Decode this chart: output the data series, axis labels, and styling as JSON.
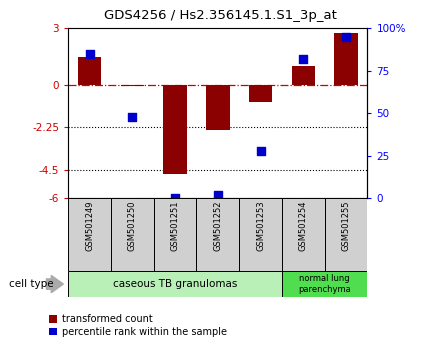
{
  "title": "GDS4256 / Hs2.356145.1.S1_3p_at",
  "samples": [
    "GSM501249",
    "GSM501250",
    "GSM501251",
    "GSM501252",
    "GSM501253",
    "GSM501254",
    "GSM501255"
  ],
  "red_values": [
    1.5,
    -0.05,
    -4.72,
    -2.4,
    -0.9,
    1.0,
    2.75
  ],
  "blue_values": [
    85,
    48,
    0,
    2,
    28,
    82,
    95
  ],
  "ylim_left": [
    -6,
    3
  ],
  "ylim_right": [
    0,
    100
  ],
  "yticks_left": [
    -6,
    -4.5,
    -2.25,
    0,
    3
  ],
  "ytick_labels_left": [
    "-6",
    "-4.5",
    "-2.25",
    "0",
    "3"
  ],
  "yticks_right": [
    0,
    25,
    50,
    75,
    100
  ],
  "ytick_labels_right": [
    "0",
    "25",
    "50",
    "75",
    "100%"
  ],
  "hlines_dotted": [
    -2.25,
    -4.5,
    -6
  ],
  "hline_dashdot": 0,
  "group1_indices": [
    0,
    1,
    2,
    3,
    4
  ],
  "group2_indices": [
    5,
    6
  ],
  "group1_label": "caseous TB granulomas",
  "group2_label": "normal lung\nparenchyma",
  "cell_type_label": "cell type",
  "legend_red": "transformed count",
  "legend_blue": "percentile rank within the sample",
  "bar_color": "#8B0000",
  "dot_color": "#0000CD",
  "group1_color": "#b8f0b8",
  "group2_color": "#50dd50",
  "bar_width": 0.55,
  "dot_size": 30,
  "bg_color": "#ffffff",
  "sample_bg_color": "#d0d0d0"
}
